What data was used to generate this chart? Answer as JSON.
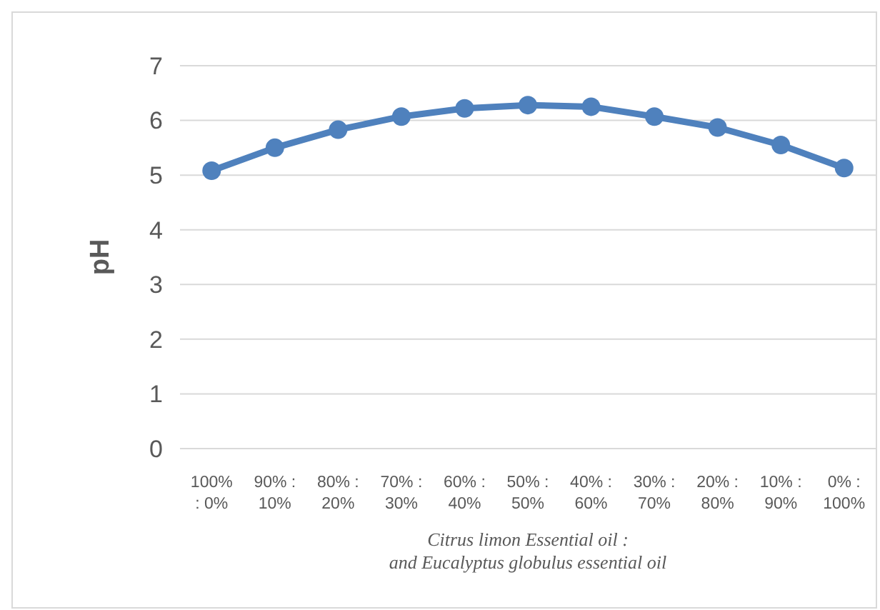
{
  "chart_data": {
    "type": "line",
    "xlabel": "Citrus limon Essential oil :\nand Eucalyptus globulus essential oil",
    "ylabel": "pH",
    "categories": [
      "100%\n: 0%",
      "90% :\n10%",
      "80% :\n20%",
      "70% :\n30%",
      "60% :\n40%",
      "50% :\n50%",
      "40% :\n60%",
      "30% :\n70%",
      "20% :\n80%",
      "10% :\n90%",
      "0% :\n100%"
    ],
    "series": [
      {
        "color": "#4f81bd",
        "values": [
          5.08,
          5.5,
          5.83,
          6.07,
          6.22,
          6.28,
          6.25,
          6.07,
          5.87,
          5.55,
          5.13
        ]
      }
    ],
    "ylim": [
      0,
      7
    ],
    "yticks": [
      0,
      1,
      2,
      3,
      4,
      5,
      6,
      7
    ],
    "grid": "y",
    "marker": "circle",
    "line_style": "solid"
  }
}
